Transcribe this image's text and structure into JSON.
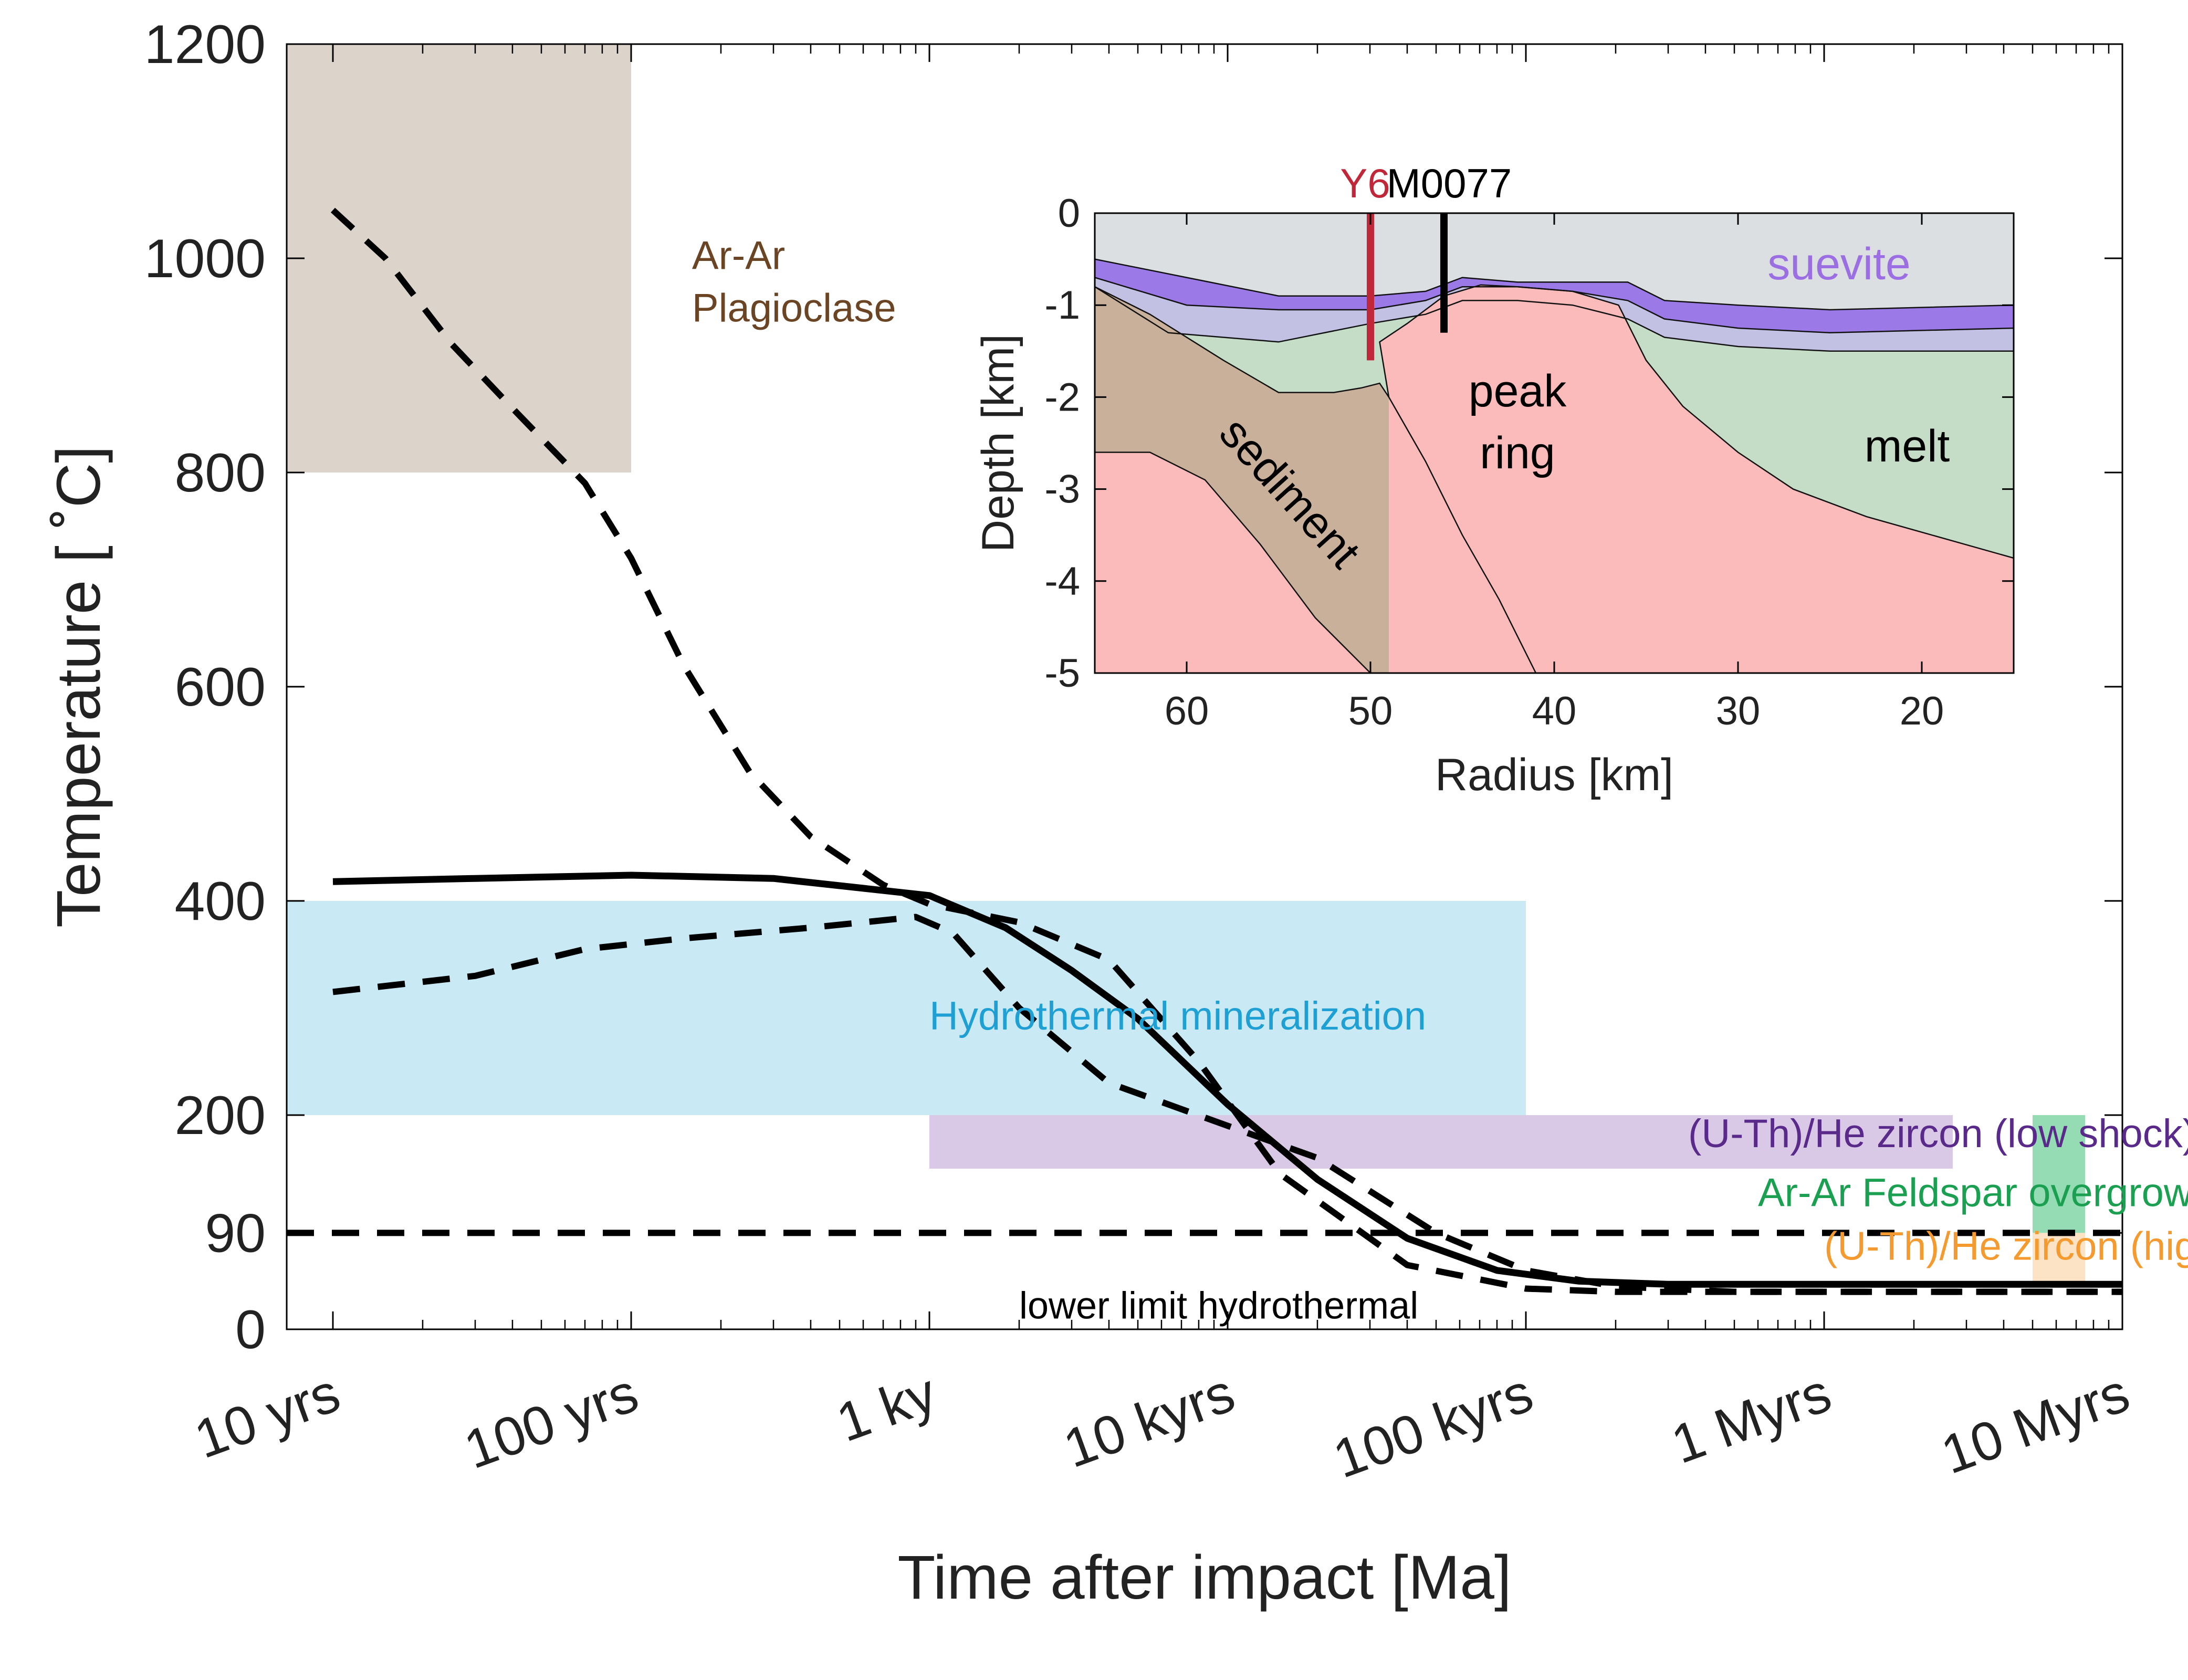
{
  "chart_data": [
    {
      "type": "line",
      "xscale": "log",
      "xlim": [
        7,
        10000000
      ],
      "ylim": [
        0,
        1200
      ],
      "xlabel": "Time after impact [Ma]",
      "ylabel": "Temperature [ ˚C]",
      "x_ticks": [
        {
          "value": 10,
          "label": "10 yrs"
        },
        {
          "value": 100,
          "label": "100 yrs"
        },
        {
          "value": 1000,
          "label": "1 ky"
        },
        {
          "value": 10000,
          "label": "10 kyrs"
        },
        {
          "value": 100000,
          "label": "100 kyrs"
        },
        {
          "value": 1000000,
          "label": "1 Myrs"
        },
        {
          "value": 10000000,
          "label": "10 Myrs"
        }
      ],
      "y_ticks": [
        {
          "value": 0,
          "label": "0"
        },
        {
          "value": 90,
          "label": "90"
        },
        {
          "value": 200,
          "label": "200"
        },
        {
          "value": 400,
          "label": "400"
        },
        {
          "value": 600,
          "label": "600"
        },
        {
          "value": 800,
          "label": "800"
        },
        {
          "value": 1000,
          "label": "1000"
        },
        {
          "value": 1200,
          "label": "1200"
        }
      ],
      "bands": [
        {
          "label_lines": [
            "Ar-Ar",
            "Plagioclase"
          ],
          "x": [
            7,
            100
          ],
          "y": [
            800,
            1200
          ],
          "fill": "#dcd3ca",
          "label_color": "#6b4423",
          "label_at": [
            160,
            990
          ]
        },
        {
          "label_lines": [
            "Hydrothermal mineralization"
          ],
          "x": [
            7,
            100000
          ],
          "y": [
            200,
            400
          ],
          "fill": "#c9e9f5",
          "label_color": "#1ea0d4",
          "label_at": [
            1000,
            280
          ]
        },
        {
          "label_lines": [
            "(U-Th)/He zircon (low shock)"
          ],
          "x": [
            1000,
            2700000
          ],
          "y": [
            150,
            200
          ],
          "fill": "#d9c9e6",
          "label_color": "#5a2a8a",
          "label_at": [
            350000,
            170
          ]
        },
        {
          "label_lines": [
            "Ar-Ar Feldspar overgrowth"
          ],
          "x": [
            5000000,
            7500000
          ],
          "y": [
            90,
            200
          ],
          "fill": "#95dcb5",
          "label_color": "#1aa050",
          "label_at": [
            600000,
            115
          ]
        },
        {
          "label_lines": [
            "(U-Th)/He zircon (high shock)"
          ],
          "x": [
            5000000,
            7500000
          ],
          "y": [
            45,
            90
          ],
          "fill": "#fce3c6",
          "label_color": "#f59a2e",
          "label_at": [
            1000000,
            65
          ]
        }
      ],
      "annotations": [
        {
          "text": "lower limit hydrothermal",
          "at": [
            2000,
            10
          ],
          "color": "#000000"
        }
      ],
      "series": [
        {
          "style": "solid",
          "x": [
            10,
            30,
            100,
            300,
            1000,
            1800,
            3000,
            5000,
            10000,
            20000,
            40000,
            80000,
            150000,
            300000,
            600000,
            1000000,
            3000000,
            10000000
          ],
          "y": [
            418,
            421,
            424,
            421,
            405,
            375,
            335,
            290,
            210,
            140,
            85,
            55,
            45,
            42,
            42,
            42,
            42,
            42
          ]
        },
        {
          "style": "dashed",
          "x": [
            10,
            15,
            25,
            40,
            70,
            100,
            150,
            250,
            400,
            700,
            1000,
            2000,
            4000,
            8000,
            15000,
            40000,
            100000,
            200000,
            500000,
            1000000,
            3000000,
            10000000
          ],
          "y": [
            1045,
            1000,
            920,
            860,
            790,
            720,
            620,
            520,
            460,
            415,
            397,
            380,
            345,
            250,
            145,
            60,
            38,
            35,
            35,
            35,
            35,
            35
          ]
        },
        {
          "style": "dashed",
          "x": [
            10,
            30,
            70,
            150,
            400,
            900,
            1200,
            2000,
            4000,
            10000,
            20000,
            50000,
            100000,
            200000,
            500000,
            1000000,
            3000000,
            10000000
          ],
          "y": [
            315,
            330,
            355,
            365,
            375,
            385,
            370,
            300,
            230,
            190,
            160,
            90,
            55,
            40,
            35,
            35,
            35,
            35
          ]
        },
        {
          "style": "dashed",
          "x": [
            7,
            10000000
          ],
          "y": [
            90,
            90
          ]
        }
      ]
    },
    {
      "type": "area",
      "xlabel": "Radius [km]",
      "ylabel": "Depth [km]",
      "xlim": [
        65,
        15
      ],
      "ylim": [
        -5,
        0
      ],
      "x_ticks": [
        60,
        50,
        40,
        30,
        20
      ],
      "y_ticks": [
        0,
        -1,
        -2,
        -3,
        -4,
        -5
      ],
      "labels": {
        "suevite": {
          "text": "suevite",
          "color": "#9b6ee3"
        },
        "peak_ring": {
          "lines": [
            "peak",
            "ring"
          ],
          "color": "#000000"
        },
        "melt": {
          "text": "melt",
          "color": "#000000"
        },
        "sediment": {
          "text": "sediment",
          "color": "#000000"
        },
        "y6": {
          "text": "Y6",
          "color": "#c0283a",
          "radius": 50
        },
        "m0077": {
          "text": "M0077",
          "color": "#000000",
          "radius": 46
        }
      },
      "layers": [
        {
          "name": "air",
          "fill": "#dcdfe2",
          "boundary": [
            [
              65,
              0
            ],
            [
              15,
              0
            ]
          ]
        },
        {
          "name": "suevite",
          "fill": "#9b79e6",
          "boundary": [
            [
              65,
              -0.5
            ],
            [
              60,
              -0.7
            ],
            [
              55,
              -0.9
            ],
            [
              50,
              -0.9
            ],
            [
              47,
              -0.85
            ],
            [
              45,
              -0.7
            ],
            [
              42,
              -0.75
            ],
            [
              39,
              -0.75
            ],
            [
              36,
              -0.75
            ],
            [
              34,
              -0.95
            ],
            [
              30,
              -1.0
            ],
            [
              25,
              -1.05
            ],
            [
              15,
              -1.0
            ]
          ]
        },
        {
          "name": "lower_suevite",
          "fill": "#c2c0e3",
          "boundary": [
            [
              65,
              -0.7
            ],
            [
              60,
              -1.0
            ],
            [
              55,
              -1.05
            ],
            [
              50,
              -1.05
            ],
            [
              47,
              -0.95
            ],
            [
              45,
              -0.8
            ],
            [
              42,
              -0.8
            ],
            [
              39,
              -0.85
            ],
            [
              36,
              -0.95
            ],
            [
              34,
              -1.15
            ],
            [
              30,
              -1.25
            ],
            [
              25,
              -1.3
            ],
            [
              15,
              -1.25
            ]
          ]
        },
        {
          "name": "melt",
          "fill": "#c5ddc6",
          "boundary": [
            [
              65,
              -0.8
            ],
            [
              61,
              -1.3
            ],
            [
              55,
              -1.4
            ],
            [
              50,
              -1.2
            ],
            [
              47,
              -1.1
            ],
            [
              45,
              -0.95
            ],
            [
              42,
              -0.95
            ],
            [
              39,
              -1.0
            ],
            [
              36,
              -1.15
            ],
            [
              34,
              -1.35
            ],
            [
              30,
              -1.45
            ],
            [
              25,
              -1.5
            ],
            [
              15,
              -1.5
            ]
          ]
        },
        {
          "name": "sediment",
          "fill": "#c9b09a",
          "boundary": [
            [
              65,
              -0.8
            ],
            [
              62,
              -1.1
            ],
            [
              58,
              -1.6
            ],
            [
              55,
              -1.95
            ],
            [
              52,
              -1.95
            ],
            [
              50.5,
              -1.9
            ],
            [
              49.5,
              -1.85
            ],
            [
              49,
              -2.0
            ],
            [
              47,
              -2.7
            ],
            [
              45,
              -3.5
            ],
            [
              43,
              -4.2
            ],
            [
              41,
              -5.0
            ]
          ]
        },
        {
          "name": "peak_ring",
          "fill": "#fbbbbb",
          "boundary": [
            [
              49,
              -2.0
            ],
            [
              49.5,
              -1.4
            ],
            [
              48,
              -1.2
            ],
            [
              46,
              -0.9
            ],
            [
              44,
              -0.78
            ],
            [
              42,
              -0.8
            ],
            [
              39,
              -0.85
            ],
            [
              36.5,
              -1.0
            ],
            [
              35,
              -1.6
            ],
            [
              33,
              -2.1
            ],
            [
              30,
              -2.6
            ],
            [
              27,
              -3.0
            ],
            [
              23,
              -3.3
            ],
            [
              15,
              -3.75
            ]
          ]
        },
        {
          "name": "basement",
          "fill": "#fbbbbb",
          "boundary": [
            [
              65,
              -2.6
            ],
            [
              62,
              -2.6
            ],
            [
              59,
              -2.9
            ],
            [
              56,
              -3.6
            ],
            [
              53,
              -4.4
            ],
            [
              50,
              -5.0
            ]
          ]
        }
      ]
    }
  ]
}
